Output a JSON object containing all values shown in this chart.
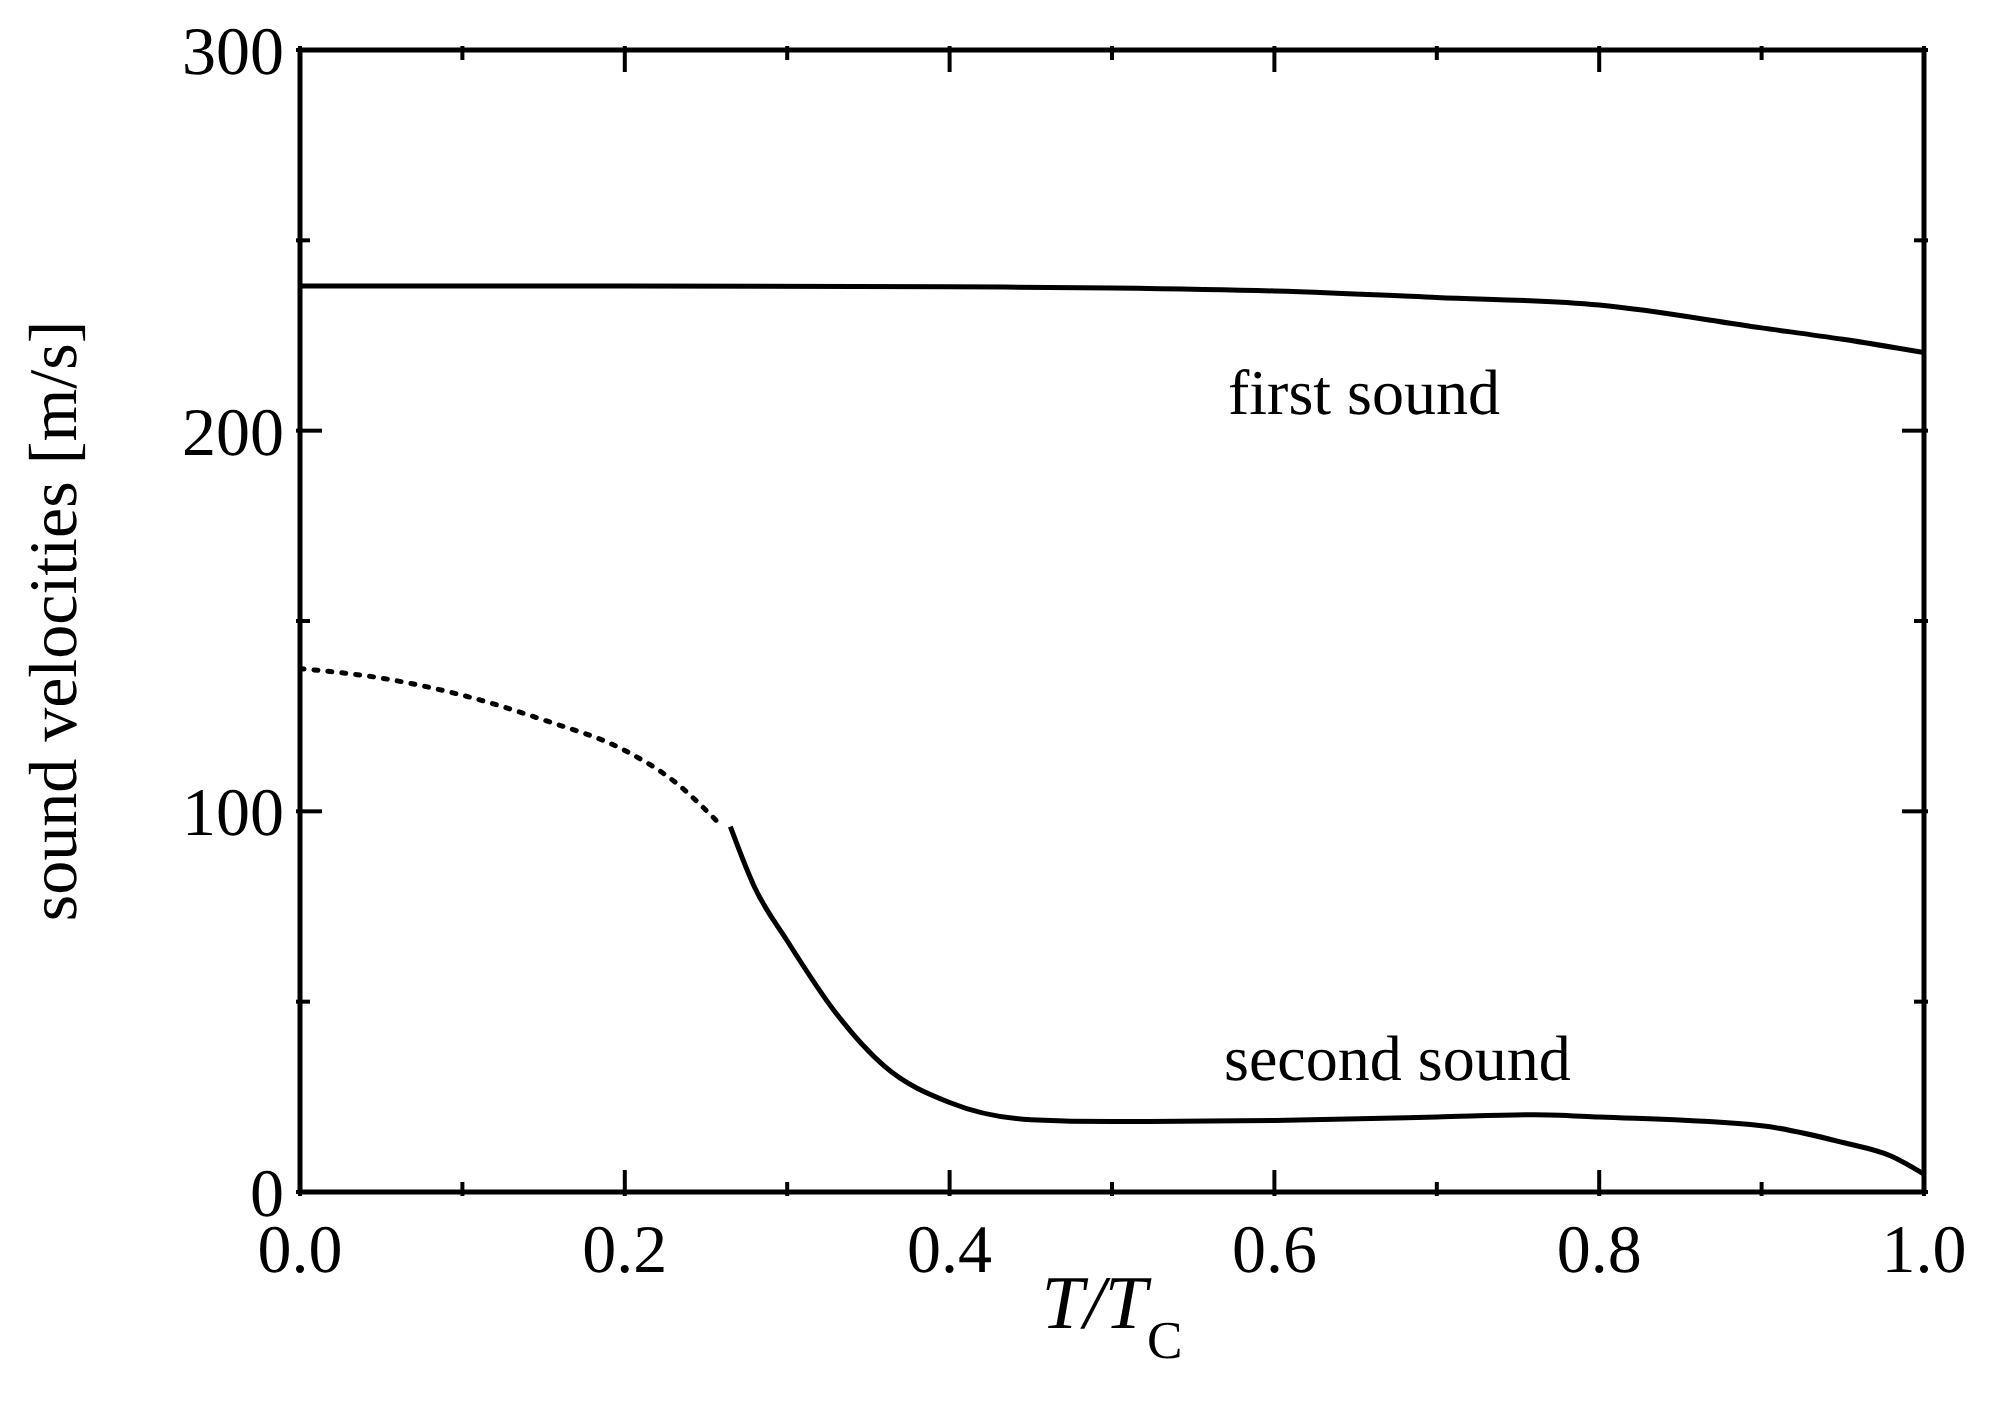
{
  "chart_data": {
    "type": "line",
    "xlabel": "T/T$_{C}$",
    "ylabel": "sound velocities [m/s]",
    "xlim": [
      0,
      1
    ],
    "ylim": [
      0,
      300
    ],
    "xticks": [
      {
        "value": 0,
        "label": "0.0"
      },
      {
        "value": 0.1,
        "label": null
      },
      {
        "value": 0.2,
        "label": "0.2"
      },
      {
        "value": 0.3,
        "label": null
      },
      {
        "value": 0.4,
        "label": "0.4"
      },
      {
        "value": 0.5,
        "label": null
      },
      {
        "value": 0.6,
        "label": "0.6"
      },
      {
        "value": 0.7,
        "label": null
      },
      {
        "value": 0.8,
        "label": "0.8"
      },
      {
        "value": 0.9,
        "label": null
      },
      {
        "value": 1,
        "label": "1.0"
      }
    ],
    "yticks": [
      0,
      {
        "value": 50,
        "label": null
      },
      100,
      {
        "value": 150,
        "label": null
      },
      200,
      {
        "value": 250,
        "label": null
      },
      300
    ],
    "grid": false,
    "marker": "none",
    "series": [
      {
        "color": "#000000",
        "line_style": "solid",
        "x": [
          0,
          0.2,
          0.4,
          0.5,
          0.6,
          0.7,
          0.8,
          0.9,
          0.95,
          1
        ],
        "values": [
          238,
          238,
          237.8,
          237.5,
          236.7,
          235,
          233,
          227,
          224,
          220.5
        ]
      },
      {
        "color": "#000000",
        "line_style": "dotted",
        "x": [
          0,
          0.05,
          0.1,
          0.15,
          0.2,
          0.23,
          0.26
        ],
        "values": [
          137.5,
          135,
          130.5,
          124,
          116,
          108,
          96
        ]
      },
      {
        "color": "#000000",
        "line_style": "solid",
        "x": [
          0.265,
          0.28,
          0.3,
          0.33,
          0.36,
          0.4,
          0.45,
          0.5,
          0.6,
          0.7,
          0.76,
          0.8,
          0.9,
          0.95,
          0.98,
          1
        ],
        "values": [
          96,
          80,
          66,
          47,
          33,
          23.5,
          19,
          18.5,
          18.8,
          19.7,
          20.3,
          19.7,
          17.4,
          13,
          9.4,
          4.7
        ]
      }
    ],
    "annotations": [
      "first sound",
      "second sound"
    ]
  }
}
